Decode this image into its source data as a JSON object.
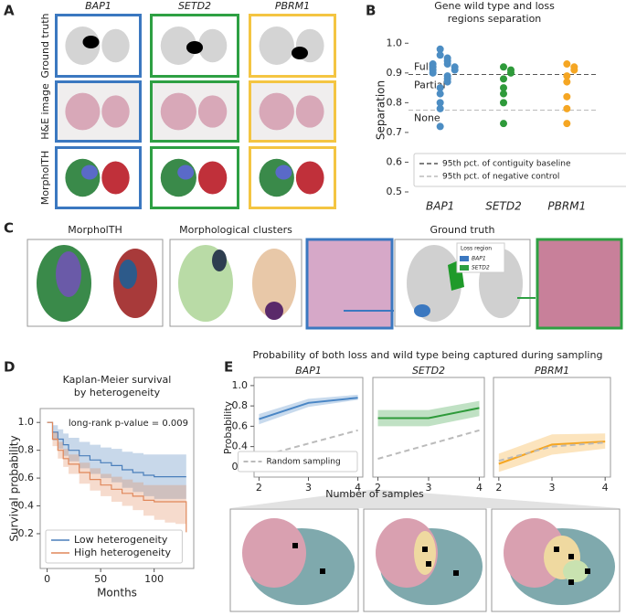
{
  "figure": {
    "panel_labels": [
      "A",
      "B",
      "C",
      "D",
      "E"
    ],
    "panel_a": {
      "columns": [
        {
          "name": "BAP1",
          "color": "#3b78c0"
        },
        {
          "name": "SETD2",
          "color": "#2ea043"
        },
        {
          "name": "PBRM1",
          "color": "#f4c542"
        }
      ],
      "rows": [
        "Ground truth",
        "H&E image",
        "MorpholTH"
      ]
    },
    "panel_c": {
      "titles": [
        "MorpholTH",
        "Morphological clusters",
        "Ground truth"
      ],
      "legend_title": "Loss region",
      "legend": [
        "BAP1",
        "SETD2"
      ]
    },
    "panel_e": {
      "title": "Probability of both loss and wild type being captured during sampling",
      "xlabel": "Number of samples",
      "ylabel": "Probability"
    }
  },
  "chart_data": [
    {
      "type": "strip",
      "title": [
        "Gene wild type and loss",
        "regions separation"
      ],
      "ylabel": "Separation",
      "groups": [
        {
          "name": "BAP1",
          "color": "#4c8dc3",
          "values": [
            0.98,
            0.96,
            0.95,
            0.94,
            0.93,
            0.93,
            0.92,
            0.92,
            0.91,
            0.91,
            0.9,
            0.89,
            0.88,
            0.87,
            0.85,
            0.83,
            0.8,
            0.78,
            0.72
          ]
        },
        {
          "name": "SETD2",
          "color": "#2e9a3a",
          "values": [
            0.92,
            0.91,
            0.9,
            0.88,
            0.85,
            0.83,
            0.8,
            0.73
          ]
        },
        {
          "name": "PBRM1",
          "color": "#f5a623",
          "values": [
            0.93,
            0.92,
            0.91,
            0.89,
            0.87,
            0.82,
            0.78,
            0.73
          ]
        }
      ],
      "ylim": [
        0.5,
        1.05
      ],
      "yticks": [
        0.5,
        0.6,
        0.7,
        0.8,
        0.9,
        {
          "value": 1,
          "label": "1.0"
        }
      ],
      "reference_lines": [
        {
          "name": "95th pct. of contiguity baseline",
          "value": 0.895,
          "color": "#555555"
        },
        {
          "name": "95th pct. of negative control",
          "value": 0.775,
          "color": "#bbbbbb"
        }
      ],
      "zone_labels": [
        "Full",
        "Partial",
        "None"
      ]
    },
    {
      "type": "line",
      "step": true,
      "title": [
        "Kaplan-Meier survival",
        "by heterogeneity"
      ],
      "annotation": "long-rank p-value = 0.009",
      "xlabel": "Months",
      "ylabel": "Survival probability",
      "x": [
        0,
        5,
        10,
        15,
        20,
        30,
        40,
        50,
        60,
        70,
        80,
        90,
        100,
        110,
        120,
        130
      ],
      "series": [
        {
          "name": "Low heterogeneity",
          "color": "#4a7ebb",
          "values": [
            1,
            0.93,
            0.88,
            0.84,
            0.8,
            0.76,
            0.73,
            0.71,
            0.69,
            0.66,
            0.64,
            0.62,
            0.61,
            0.61,
            0.61,
            0.61
          ],
          "lower": [
            1,
            0.87,
            0.81,
            0.76,
            0.72,
            0.67,
            0.63,
            0.6,
            0.57,
            0.53,
            0.5,
            0.47,
            0.45,
            0.45,
            0.45,
            0.45
          ],
          "upper": [
            1,
            0.98,
            0.95,
            0.92,
            0.89,
            0.86,
            0.84,
            0.82,
            0.81,
            0.79,
            0.78,
            0.77,
            0.77,
            0.77,
            0.77,
            0.77
          ]
        },
        {
          "name": "High heterogeneity",
          "color": "#e0875a",
          "values": [
            1,
            0.88,
            0.8,
            0.74,
            0.7,
            0.64,
            0.59,
            0.55,
            0.52,
            0.49,
            0.47,
            0.44,
            0.43,
            0.43,
            0.43,
            0.21
          ],
          "lower": [
            1,
            0.83,
            0.74,
            0.68,
            0.63,
            0.56,
            0.51,
            0.47,
            0.43,
            0.4,
            0.37,
            0.33,
            0.3,
            0.28,
            0.27,
            0.04
          ],
          "upper": [
            1,
            0.93,
            0.86,
            0.81,
            0.77,
            0.71,
            0.67,
            0.63,
            0.61,
            0.59,
            0.57,
            0.55,
            0.55,
            0.55,
            0.55,
            0.4
          ]
        }
      ],
      "xlim": [
        -6.5,
        137
      ],
      "xticks": [
        0,
        50,
        100
      ],
      "ylim": [
        -0.05,
        1.1
      ],
      "yticks": [
        0.2,
        0.4,
        0.6,
        0.8,
        {
          "value": 1,
          "label": "1.0"
        }
      ],
      "legend": "lower left"
    },
    {
      "type": "line",
      "title": "BAP1",
      "x": [
        2,
        3,
        4
      ],
      "series": [
        {
          "color": "#4a86c5",
          "values": [
            0.67,
            0.83,
            0.88
          ],
          "lower": [
            0.62,
            0.79,
            0.86
          ],
          "upper": [
            0.72,
            0.87,
            0.91
          ]
        },
        {
          "name": "Random sampling",
          "color": "#bbbbbb",
          "dashed": true,
          "values": [
            0.3,
            0.43,
            0.56
          ]
        }
      ],
      "xlim": [
        1.9,
        4.1
      ],
      "xticks": [
        2,
        3,
        4
      ],
      "ylim": [
        0.1,
        1.08
      ],
      "yticks": [
        0.2,
        0.4,
        0.6,
        0.8,
        {
          "value": 1,
          "label": "1.0"
        }
      ],
      "legend": "lower right"
    },
    {
      "type": "line",
      "title": "SETD2",
      "x": [
        2,
        3,
        4
      ],
      "series": [
        {
          "color": "#2e9a3a",
          "values": [
            0.68,
            0.68,
            0.78
          ],
          "lower": [
            0.6,
            0.6,
            0.7
          ],
          "upper": [
            0.76,
            0.76,
            0.85
          ]
        },
        {
          "color": "#bbbbbb",
          "dashed": true,
          "values": [
            0.28,
            0.42,
            0.56
          ]
        }
      ],
      "xlim": [
        1.9,
        4.1
      ],
      "xticks": [
        2,
        3,
        4
      ],
      "ylim": [
        0.1,
        1.08
      ]
    },
    {
      "type": "line",
      "title": "PBRM1",
      "x": [
        2,
        3,
        4
      ],
      "series": [
        {
          "color": "#f5a623",
          "values": [
            0.23,
            0.42,
            0.45
          ],
          "lower": [
            0.15,
            0.32,
            0.38
          ],
          "upper": [
            0.33,
            0.52,
            0.53
          ]
        },
        {
          "color": "#bbbbbb",
          "dashed": true,
          "values": [
            0.26,
            0.4,
            0.44
          ]
        }
      ],
      "xlim": [
        1.9,
        4.1
      ],
      "xticks": [
        2,
        3,
        4
      ],
      "ylim": [
        0.1,
        1.08
      ]
    }
  ]
}
